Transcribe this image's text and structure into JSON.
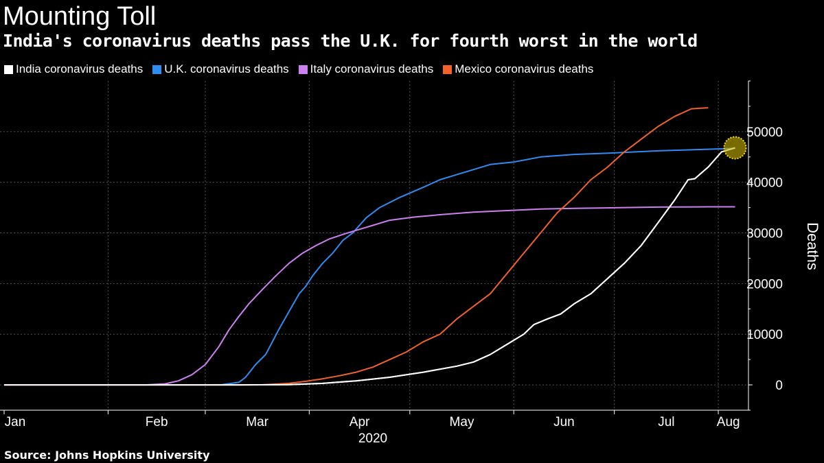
{
  "header": {
    "title": "Mounting Toll",
    "subtitle": "India's coronavirus deaths pass the U.K. for fourth worst in the world"
  },
  "legend": [
    {
      "label": "India coronavirus deaths",
      "color": "#ffffff"
    },
    {
      "label": "U.K. coronavirus deaths",
      "color": "#2f8cf0"
    },
    {
      "label": "Italy coronavirus deaths",
      "color": "#cc80f2"
    },
    {
      "label": "Mexico coronavirus deaths",
      "color": "#f2622a"
    }
  ],
  "source": "Source: Johns Hopkins University",
  "chart_data": {
    "type": "line",
    "title": "Mounting Toll",
    "subtitle": "India's coronavirus deaths pass the U.K. for fourth worst in the world",
    "xlabel": "2020",
    "ylabel": "Deaths",
    "x_unit": "day of year 2020",
    "xlim": [
      0,
      222
    ],
    "ylim": [
      -5000,
      60000
    ],
    "yticks": [
      0,
      10000,
      20000,
      30000,
      40000,
      50000
    ],
    "ytick_labels": [
      "0",
      "10000",
      "20000",
      "30000",
      "40000",
      "50000"
    ],
    "xticks": [
      {
        "label": "Jan",
        "value": 0
      },
      {
        "label": "Feb",
        "value": 31
      },
      {
        "label": "Mar",
        "value": 60
      },
      {
        "label": "Apr",
        "value": 91
      },
      {
        "label": "May",
        "value": 121
      },
      {
        "label": "Jun",
        "value": 152
      },
      {
        "label": "Jul",
        "value": 182
      },
      {
        "label": "Aug",
        "value": 213
      }
    ],
    "grid": true,
    "highlight": {
      "series": "India coronavirus deaths",
      "x": 218,
      "y": 46800,
      "color": "#c8b400"
    },
    "series": [
      {
        "name": "India coronavirus deaths",
        "color": "#ffffff",
        "points": [
          [
            0,
            0
          ],
          [
            70,
            0
          ],
          [
            75,
            10
          ],
          [
            85,
            50
          ],
          [
            95,
            300
          ],
          [
            105,
            800
          ],
          [
            115,
            1500
          ],
          [
            125,
            2500
          ],
          [
            135,
            3700
          ],
          [
            140,
            4500
          ],
          [
            145,
            6000
          ],
          [
            150,
            8000
          ],
          [
            155,
            10000
          ],
          [
            158,
            11900
          ],
          [
            162,
            13000
          ],
          [
            166,
            14000
          ],
          [
            170,
            16000
          ],
          [
            175,
            18000
          ],
          [
            180,
            21000
          ],
          [
            185,
            24000
          ],
          [
            190,
            27500
          ],
          [
            195,
            32000
          ],
          [
            200,
            36500
          ],
          [
            204,
            40500
          ],
          [
            206,
            40700
          ],
          [
            210,
            43000
          ],
          [
            214,
            46000
          ],
          [
            218,
            46800
          ]
        ]
      },
      {
        "name": "U.K. coronavirus deaths",
        "color": "#2f8cf0",
        "points": [
          [
            0,
            0
          ],
          [
            60,
            0
          ],
          [
            65,
            50
          ],
          [
            70,
            500
          ],
          [
            72,
            1500
          ],
          [
            75,
            4000
          ],
          [
            78,
            6000
          ],
          [
            82,
            11000
          ],
          [
            85,
            14500
          ],
          [
            88,
            18000
          ],
          [
            90,
            19500
          ],
          [
            92,
            21500
          ],
          [
            95,
            24000
          ],
          [
            98,
            26000
          ],
          [
            101,
            28500
          ],
          [
            104,
            30000
          ],
          [
            108,
            33000
          ],
          [
            112,
            35000
          ],
          [
            118,
            37000
          ],
          [
            125,
            39000
          ],
          [
            130,
            40500
          ],
          [
            135,
            41500
          ],
          [
            140,
            42500
          ],
          [
            145,
            43500
          ],
          [
            152,
            44000
          ],
          [
            160,
            45000
          ],
          [
            170,
            45500
          ],
          [
            182,
            45800
          ],
          [
            195,
            46200
          ],
          [
            205,
            46400
          ],
          [
            218,
            46700
          ]
        ]
      },
      {
        "name": "Italy coronavirus deaths",
        "color": "#cc80f2",
        "points": [
          [
            0,
            0
          ],
          [
            42,
            0
          ],
          [
            48,
            200
          ],
          [
            52,
            800
          ],
          [
            56,
            2000
          ],
          [
            60,
            4000
          ],
          [
            64,
            7500
          ],
          [
            67,
            10800
          ],
          [
            70,
            13500
          ],
          [
            73,
            16000
          ],
          [
            77,
            18800
          ],
          [
            81,
            21500
          ],
          [
            85,
            24000
          ],
          [
            89,
            26000
          ],
          [
            93,
            27500
          ],
          [
            97,
            28800
          ],
          [
            101,
            29700
          ],
          [
            105,
            30500
          ],
          [
            110,
            31500
          ],
          [
            115,
            32500
          ],
          [
            122,
            33100
          ],
          [
            130,
            33600
          ],
          [
            140,
            34100
          ],
          [
            150,
            34400
          ],
          [
            160,
            34700
          ],
          [
            170,
            34850
          ],
          [
            182,
            34960
          ],
          [
            195,
            35100
          ],
          [
            210,
            35150
          ],
          [
            218,
            35150
          ]
        ]
      },
      {
        "name": "Mexico coronavirus deaths",
        "color": "#f2622a",
        "points": [
          [
            0,
            0
          ],
          [
            76,
            0
          ],
          [
            80,
            100
          ],
          [
            85,
            300
          ],
          [
            90,
            700
          ],
          [
            95,
            1200
          ],
          [
            100,
            1800
          ],
          [
            105,
            2500
          ],
          [
            110,
            3500
          ],
          [
            115,
            5000
          ],
          [
            120,
            6500
          ],
          [
            125,
            8500
          ],
          [
            130,
            10000
          ],
          [
            135,
            13000
          ],
          [
            140,
            15500
          ],
          [
            145,
            18000
          ],
          [
            150,
            22000
          ],
          [
            155,
            26000
          ],
          [
            160,
            30000
          ],
          [
            165,
            34000
          ],
          [
            170,
            37000
          ],
          [
            175,
            40500
          ],
          [
            180,
            43000
          ],
          [
            185,
            46000
          ],
          [
            190,
            48500
          ],
          [
            195,
            51000
          ],
          [
            200,
            53000
          ],
          [
            205,
            54500
          ],
          [
            210,
            54700
          ]
        ]
      }
    ]
  }
}
